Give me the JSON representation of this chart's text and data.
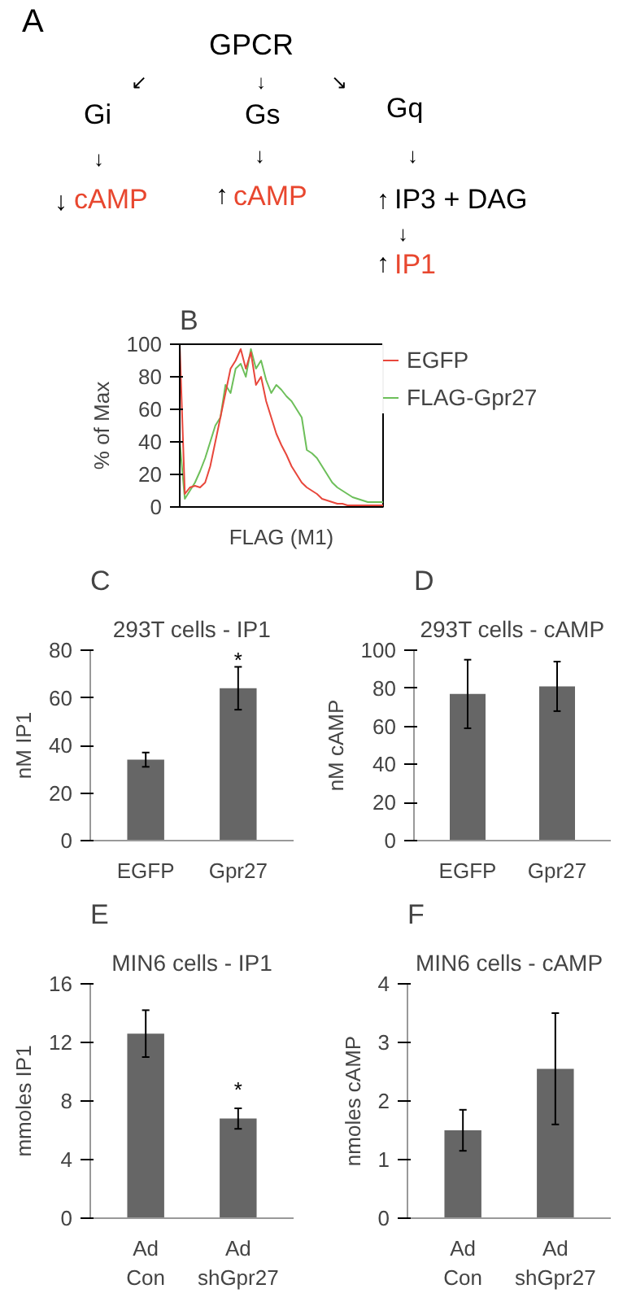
{
  "chart_data": [
    {
      "type": "other",
      "annotations": [
        "A",
        "GPCR",
        "↙",
        "↓",
        "↘",
        "Gi",
        "Gs",
        "Gq",
        "↓",
        "↓",
        "↓",
        "↓",
        "cAMP",
        "↑",
        "cAMP",
        "↑",
        "IP3 + DAG",
        "↓",
        "↑",
        "IP1"
      ],
      "colors": [
        "#000000",
        "#000000",
        "#000000",
        "#000000",
        "#000000",
        "#000000",
        "#000000",
        "#000000",
        "#000000",
        "#000000",
        "#000000",
        "#000000",
        "#e8472f",
        "#000000",
        "#e8472f",
        "#000000",
        "#000000",
        "#000000",
        "#000000",
        "#e8472f"
      ]
    },
    {
      "type": "line",
      "annotations": [
        "B"
      ],
      "xlabel": "FLAG (M1)",
      "ylabel": "% of Max",
      "ylim": [
        0,
        100
      ],
      "yticks": [
        0,
        20,
        40,
        60,
        80,
        100
      ],
      "legend": "right",
      "grid": false,
      "categories": [
        null,
        null,
        null,
        null,
        null,
        null,
        null,
        null,
        null,
        null,
        null,
        null,
        null,
        null,
        null,
        null,
        null,
        null,
        null,
        null,
        null,
        null,
        null,
        null,
        null,
        null,
        null,
        null,
        null,
        null,
        null,
        null,
        null,
        null,
        null,
        null,
        null,
        null,
        null,
        null,
        null
      ],
      "series": [
        {
          "name": "EGFP",
          "color": "#e8473c",
          "values": [
            100,
            8,
            12,
            13,
            12,
            15,
            25,
            40,
            55,
            70,
            85,
            90,
            97,
            85,
            95,
            75,
            80,
            65,
            55,
            45,
            38,
            32,
            25,
            20,
            15,
            12,
            10,
            8,
            5,
            4,
            3,
            2,
            2,
            1,
            1,
            1,
            1,
            1,
            1,
            1,
            1
          ]
        },
        {
          "name": "FLAG-Gpr27",
          "color": "#6dbf5a",
          "values": [
            40,
            5,
            10,
            15,
            22,
            30,
            40,
            50,
            55,
            75,
            70,
            85,
            88,
            80,
            97,
            85,
            90,
            78,
            70,
            75,
            72,
            68,
            65,
            60,
            55,
            35,
            33,
            30,
            25,
            20,
            15,
            12,
            10,
            8,
            6,
            5,
            4,
            3,
            3,
            3,
            3
          ]
        }
      ]
    },
    {
      "type": "bar",
      "title": "293T cells - IP1",
      "ylabel": "nM IP1",
      "annotations": [
        "C",
        {
          "text": "*",
          "x": "Gpr27",
          "y": 76
        }
      ],
      "categories": [
        "EGFP",
        "Gpr27"
      ],
      "values": [
        34,
        64
      ],
      "errors": [
        3,
        9
      ],
      "color": "#666666",
      "ylim": [
        0,
        80
      ],
      "yticks": [
        0,
        20,
        40,
        60,
        80
      ],
      "grid": false
    },
    {
      "type": "bar",
      "title": "293T cells - cAMP",
      "ylabel": "nM cAMP",
      "annotations": [
        "D"
      ],
      "categories": [
        "EGFP",
        "Gpr27"
      ],
      "values": [
        77,
        81
      ],
      "errors": [
        18,
        13
      ],
      "color": "#666666",
      "ylim": [
        0,
        100
      ],
      "yticks": [
        0,
        20,
        40,
        60,
        80,
        100
      ],
      "grid": false
    },
    {
      "type": "bar",
      "title": "MIN6 cells - IP1",
      "ylabel": "mmoles IP1",
      "annotations": [
        "E",
        "*"
      ],
      "categories": [
        "Ad\nCon",
        "Ad\nshGpr27"
      ],
      "values": [
        12.6,
        6.8
      ],
      "errors": [
        1.6,
        0.7
      ],
      "color": "#666666",
      "ylim": [
        0,
        16
      ],
      "yticks": [
        0,
        4,
        8,
        12,
        16
      ],
      "grid": false
    },
    {
      "type": "bar",
      "title": "MIN6 cells - cAMP",
      "ylabel": "nmoles cAMP",
      "annotations": [
        "F"
      ],
      "categories": [
        "Ad\nCon",
        "Ad\nshGpr27"
      ],
      "values": [
        1.5,
        2.55
      ],
      "errors": [
        0.35,
        0.95
      ],
      "color": "#666666",
      "ylim": [
        0,
        4
      ],
      "yticks": [
        0,
        1,
        2,
        3,
        4
      ],
      "grid": false
    }
  ]
}
